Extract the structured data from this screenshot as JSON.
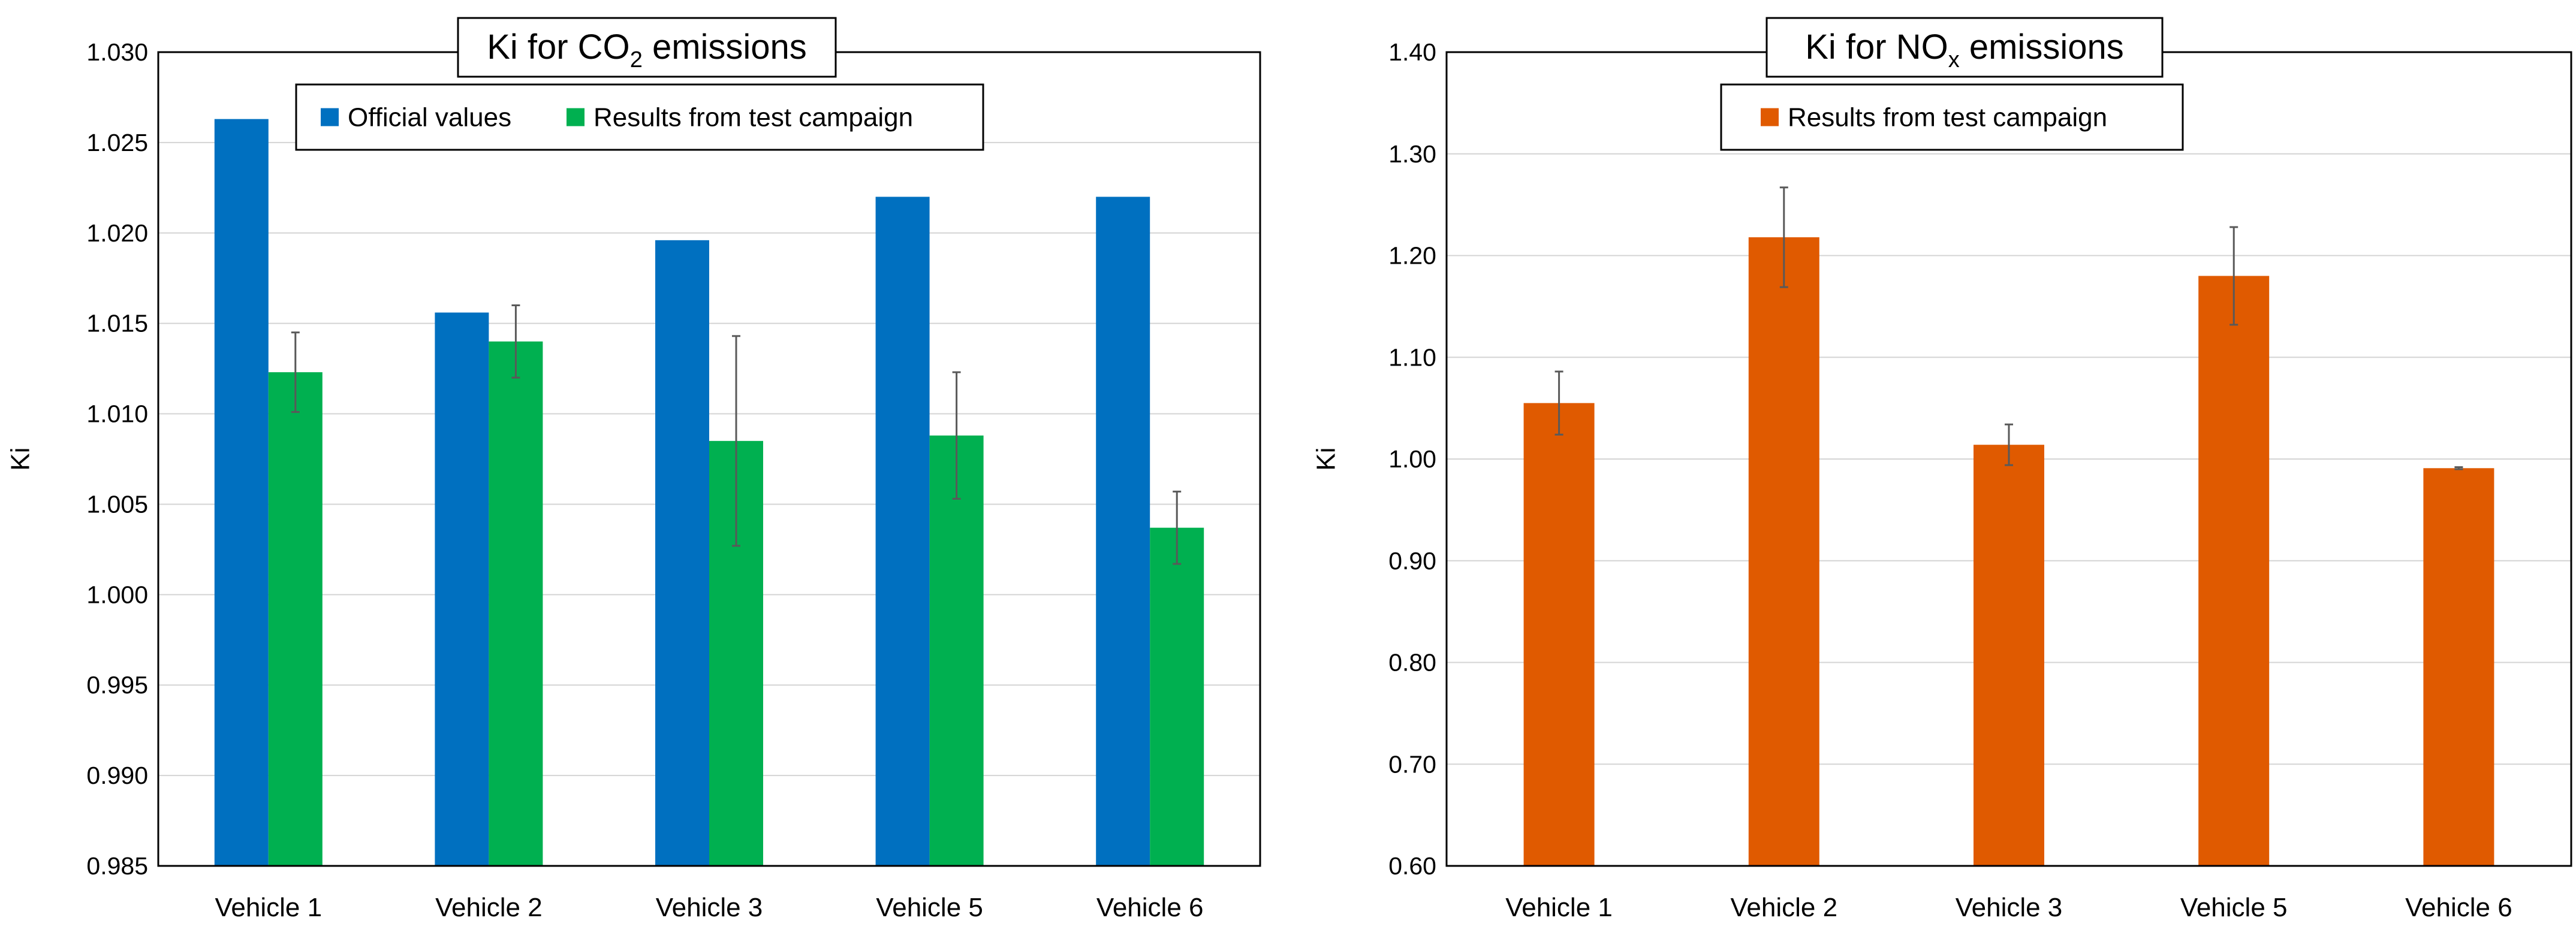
{
  "chart_data": [
    {
      "id": "co2",
      "type": "bar",
      "title": "Ki for CO",
      "title_subscript": "2",
      "title_suffix": " emissions",
      "xlabel": "",
      "ylabel": "Ki",
      "categories": [
        "Vehicle 1",
        "Vehicle 2",
        "Vehicle 3",
        "Vehicle 5",
        "Vehicle 6"
      ],
      "ylim": [
        0.985,
        1.03
      ],
      "yticks": [
        0.985,
        0.99,
        0.995,
        1.0,
        1.005,
        1.01,
        1.015,
        1.02,
        1.025,
        1.03
      ],
      "ytick_labels": [
        "0.985",
        "0.990",
        "0.995",
        "1.000",
        "1.005",
        "1.010",
        "1.015",
        "1.020",
        "1.025",
        "1.030"
      ],
      "grid": true,
      "legend_position": "top-center",
      "series": [
        {
          "name": "Official values",
          "color": "#0070C0",
          "values": [
            1.0263,
            1.0156,
            1.0196,
            1.022,
            1.022
          ],
          "errors": null
        },
        {
          "name": "Results from test campaign",
          "color": "#00B050",
          "values": [
            1.0123,
            1.014,
            1.0085,
            1.0088,
            1.0037
          ],
          "errors": [
            0.0022,
            0.002,
            0.0058,
            0.0035,
            0.002
          ]
        }
      ]
    },
    {
      "id": "nox",
      "type": "bar",
      "title": "Ki for NO",
      "title_subscript": "x",
      "title_suffix": " emissions",
      "xlabel": "",
      "ylabel": "Ki",
      "categories": [
        "Vehicle 1",
        "Vehicle 2",
        "Vehicle 3",
        "Vehicle 5",
        "Vehicle 6"
      ],
      "ylim": [
        0.6,
        1.4
      ],
      "yticks": [
        0.6,
        0.7,
        0.8,
        0.9,
        1.0,
        1.1,
        1.2,
        1.3,
        1.4
      ],
      "ytick_labels": [
        "0.60",
        "0.70",
        "0.80",
        "0.90",
        "1.00",
        "1.10",
        "1.20",
        "1.30",
        "1.40"
      ],
      "grid": true,
      "legend_position": "top-center",
      "series": [
        {
          "name": "Results from test campaign",
          "color": "#E05A00",
          "values": [
            1.055,
            1.218,
            1.014,
            1.18,
            0.991
          ],
          "errors": [
            0.031,
            0.049,
            0.02,
            0.048,
            0.001
          ]
        }
      ]
    }
  ]
}
